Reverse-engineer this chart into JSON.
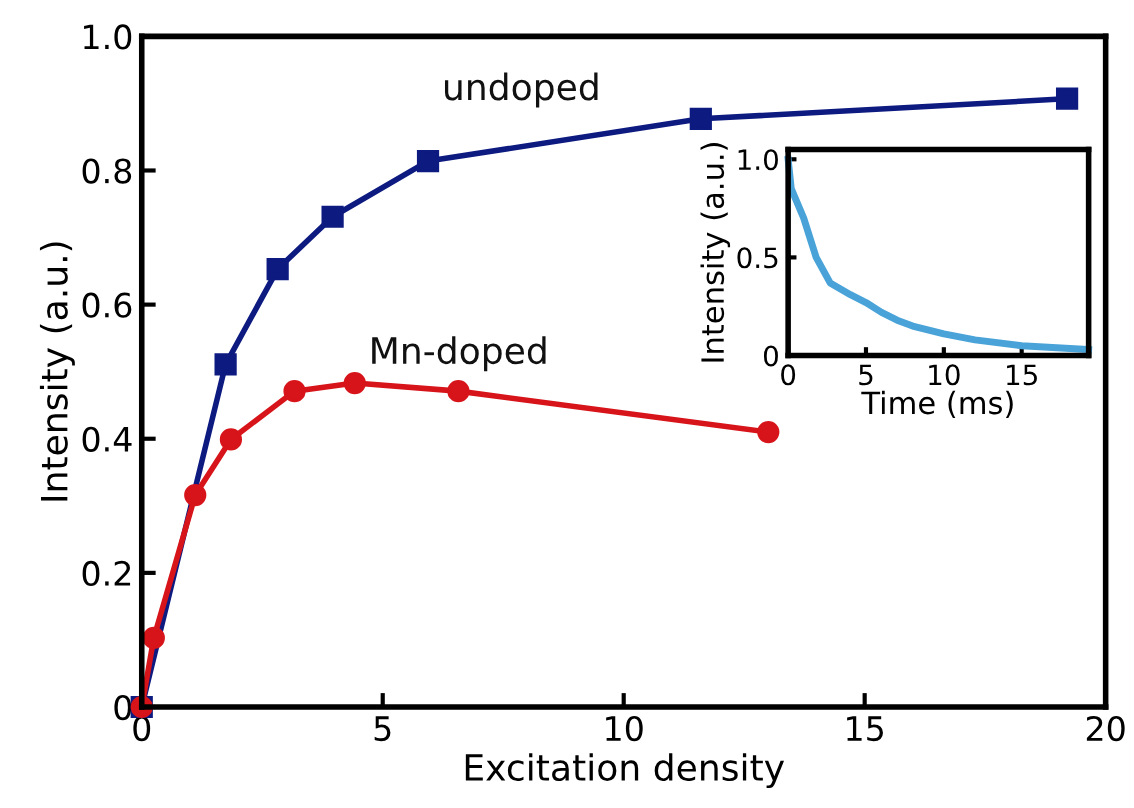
{
  "chart_data": [
    {
      "type": "line",
      "xlabel": "Excitation density",
      "ylabel": "Intensity (a.u.)",
      "xlim": [
        0,
        20
      ],
      "ylim": [
        0,
        1.0
      ],
      "xticks": [
        0,
        5,
        10,
        15,
        20
      ],
      "yticks": [
        0,
        0.2,
        0.4,
        0.6,
        0.8,
        {
          "value": 1.0,
          "label": "1.0"
        }
      ],
      "grid": false,
      "legend": false,
      "series": [
        {
          "name": "undoped",
          "color": "#0d1a80",
          "marker": "square",
          "x": [
            0,
            1.74,
            2.82,
            3.96,
            5.94,
            11.6,
            19.2
          ],
          "values": [
            0,
            0.511,
            0.653,
            0.731,
            0.814,
            0.877,
            0.907
          ]
        },
        {
          "name": "Mn-doped",
          "color": "#d7141a",
          "marker": "circle",
          "x": [
            0,
            0.25,
            1.11,
            1.85,
            3.17,
            4.42,
            6.57,
            13.0
          ],
          "values": [
            0,
            0.103,
            0.316,
            0.399,
            0.471,
            0.483,
            0.471,
            0.41
          ]
        }
      ]
    },
    {
      "type": "line",
      "xlabel": "Time (ms)",
      "ylabel": "Intensity (a.u.)",
      "xlim": [
        0,
        19.3
      ],
      "ylim": [
        0,
        1.05
      ],
      "xticks": [
        0,
        5,
        10,
        15
      ],
      "yticks": [
        0,
        0.5,
        {
          "value": 1.0,
          "label": "1.0"
        }
      ],
      "grid": false,
      "legend": false,
      "series": [
        {
          "color": "#4aa3d8",
          "marker": "none",
          "x": [
            0,
            0.2,
            1,
            1.8,
            2.7,
            4,
            5,
            6,
            7,
            8,
            10,
            12,
            15,
            19.3
          ],
          "values": [
            1.0,
            0.85,
            0.7,
            0.5,
            0.37,
            0.31,
            0.27,
            0.22,
            0.18,
            0.15,
            0.11,
            0.08,
            0.05,
            0.03
          ]
        }
      ]
    }
  ]
}
